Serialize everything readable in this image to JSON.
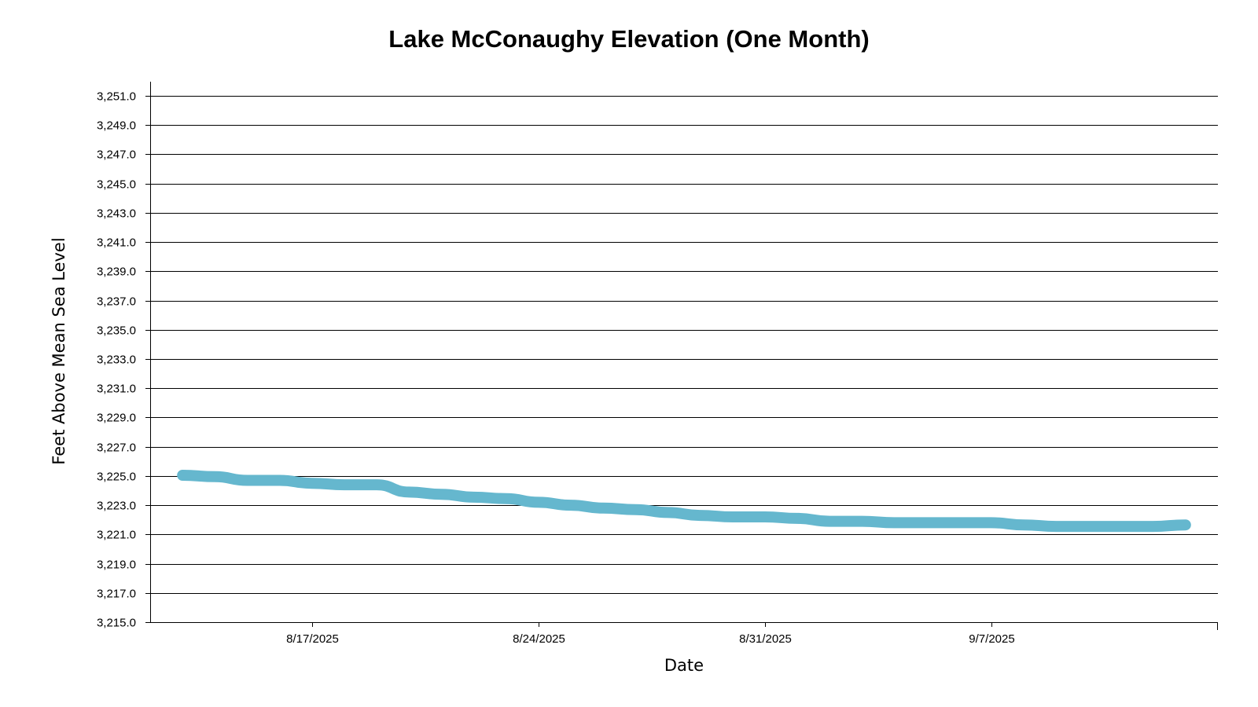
{
  "chart_data": {
    "type": "line",
    "title": "Lake McConaughy Elevation (One Month)",
    "xlabel": "Date",
    "ylabel": "Feet Above Mean Sea Level",
    "x_axis_type": "date",
    "xlim": [
      "2025-08-12",
      "2025-09-14"
    ],
    "ylim": [
      3215.0,
      3251.0
    ],
    "y_ticks": [
      3215.0,
      3217.0,
      3219.0,
      3221.0,
      3223.0,
      3225.0,
      3227.0,
      3229.0,
      3231.0,
      3233.0,
      3235.0,
      3237.0,
      3239.0,
      3241.0,
      3243.0,
      3245.0,
      3247.0,
      3249.0,
      3251.0
    ],
    "y_tick_labels": [
      "3,215.0",
      "3,217.0",
      "3,219.0",
      "3,221.0",
      "3,223.0",
      "3,225.0",
      "3,227.0",
      "3,229.0",
      "3,231.0",
      "3,233.0",
      "3,235.0",
      "3,237.0",
      "3,239.0",
      "3,241.0",
      "3,243.0",
      "3,245.0",
      "3,247.0",
      "3,249.0",
      "3,251.0"
    ],
    "x_ticks": [
      "2025-08-17",
      "2025-08-24",
      "2025-08-31",
      "2025-09-07"
    ],
    "x_tick_labels": [
      "8/17/2025",
      "8/24/2025",
      "8/31/2025",
      "9/7/2025"
    ],
    "grid": true,
    "legend": false,
    "series": [
      {
        "color": "#65b7ce",
        "x": [
          "2025-08-13",
          "2025-08-14",
          "2025-08-15",
          "2025-08-16",
          "2025-08-17",
          "2025-08-18",
          "2025-08-19",
          "2025-08-20",
          "2025-08-21",
          "2025-08-22",
          "2025-08-23",
          "2025-08-24",
          "2025-08-25",
          "2025-08-26",
          "2025-08-27",
          "2025-08-28",
          "2025-08-29",
          "2025-08-30",
          "2025-08-31",
          "2025-09-01",
          "2025-09-02",
          "2025-09-03",
          "2025-09-04",
          "2025-09-05",
          "2025-09-06",
          "2025-09-07",
          "2025-09-08",
          "2025-09-09",
          "2025-09-10",
          "2025-09-11",
          "2025-09-12",
          "2025-09-13"
        ],
        "y": [
          3225.05,
          3224.95,
          3224.7,
          3224.7,
          3224.5,
          3224.4,
          3224.4,
          3223.9,
          3223.75,
          3223.55,
          3223.45,
          3223.2,
          3223.0,
          3222.8,
          3222.7,
          3222.5,
          3222.3,
          3222.2,
          3222.2,
          3222.1,
          3221.9,
          3221.9,
          3221.8,
          3221.8,
          3221.8,
          3221.8,
          3221.65,
          3221.55,
          3221.55,
          3221.55,
          3221.55,
          3221.65
        ]
      }
    ]
  }
}
